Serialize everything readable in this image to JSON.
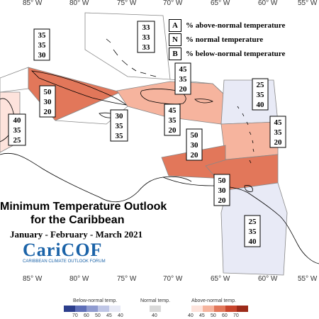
{
  "title_line1": "Minimum Temperature Outlook",
  "title_line2": "for the Caribbean",
  "period": "January - February - March 2021",
  "logo": {
    "name": "CariCOF",
    "tagline": "CARIBBEAN CLIMATE OUTLOOK FORUM"
  },
  "legend": [
    {
      "key": "A",
      "text": "% above-normal temperature"
    },
    {
      "key": "N",
      "text": "% normal temperature"
    },
    {
      "key": "B",
      "text": "% below-normal temperature"
    }
  ],
  "longitude_labels": [
    "85° W",
    "80° W",
    "75° W",
    "70° W",
    "65° W",
    "60° W",
    "55° W"
  ],
  "colors": {
    "above_40": "#fde3dc",
    "above_45": "#f6b49e",
    "above_50": "#e2775a",
    "below_40": "#e8eaf6",
    "outline": "#888888"
  },
  "regions": [
    {
      "name": "northwest-caribbean",
      "probs": [
        "35",
        "35",
        "30"
      ]
    },
    {
      "name": "bahamas",
      "probs": [
        "33",
        "33",
        "33"
      ]
    },
    {
      "name": "central-america",
      "probs": [
        "40",
        "35",
        "25"
      ]
    },
    {
      "name": "cuba",
      "probs": [
        "50",
        "30",
        "20"
      ]
    },
    {
      "name": "jamaica",
      "probs": [
        "30",
        "35",
        "35"
      ]
    },
    {
      "name": "turks-caicos",
      "probs": [
        "45",
        "35",
        "20"
      ]
    },
    {
      "name": "hispaniola",
      "probs": [
        "45",
        "35",
        "20"
      ]
    },
    {
      "name": "northern-leewards",
      "probs": [
        "25",
        "35",
        "40"
      ]
    },
    {
      "name": "windward-islands",
      "probs": [
        "45",
        "35",
        "20"
      ]
    },
    {
      "name": "caribbean-sea",
      "probs": [
        "50",
        "30",
        "20"
      ]
    },
    {
      "name": "abc-islands",
      "probs": [
        "50",
        "30",
        "20"
      ]
    },
    {
      "name": "guianas",
      "probs": [
        "25",
        "35",
        "40"
      ]
    }
  ],
  "colorbar": {
    "below_title": "Below-normal temp.",
    "normal_title": "Normal temp.",
    "above_title": "Above-normal temp.",
    "below_ticks": [
      "70",
      "60",
      "50",
      "45",
      "40"
    ],
    "normal_ticks": [
      "40"
    ],
    "above_ticks": [
      "40",
      "45",
      "50",
      "60",
      "70"
    ],
    "below_colors": [
      "#2c3e8c",
      "#5e6fb8",
      "#8f9bd0",
      "#bfc6e6",
      "#e8eaf6"
    ],
    "normal_colors": [
      "#d9d9d9"
    ],
    "above_colors": [
      "#fde3dc",
      "#f6b49e",
      "#e2775a",
      "#c8452c",
      "#9c2a19"
    ]
  }
}
